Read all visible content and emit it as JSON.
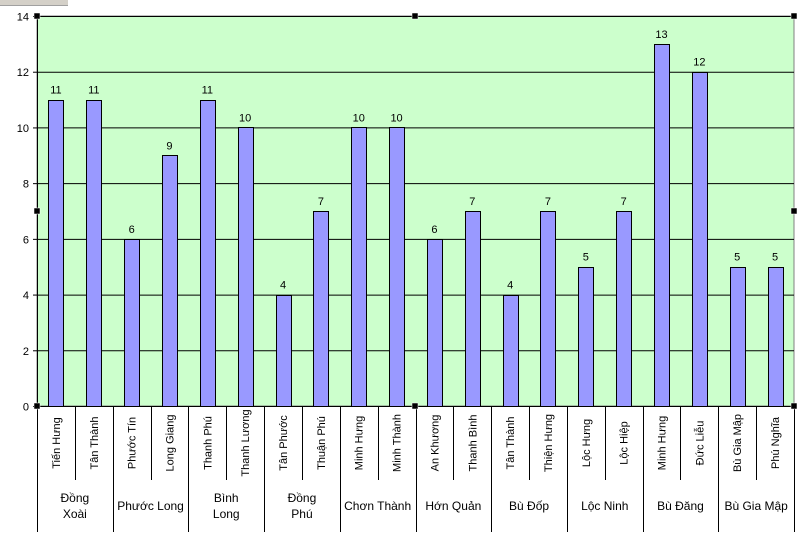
{
  "chart_data": {
    "type": "bar",
    "title": "",
    "xlabel": "",
    "ylabel": "",
    "ylim": [
      0,
      14
    ],
    "yticks": [
      0,
      2,
      4,
      6,
      8,
      10,
      12,
      14
    ],
    "grid": true,
    "legend": "none",
    "colors": {
      "plot_background": "#ccffcc",
      "bar_fill": "#9999ff",
      "bar_stroke": "#000000",
      "gridline": "#000000"
    },
    "categories": [
      "Tiến Hưng",
      "Tân Thành",
      "Phước Tín",
      "Long Giang",
      "Thanh Phú",
      "Thanh Lương",
      "Tân Phước",
      "Thuận Phú",
      "Minh Hưng",
      "Minh Thành",
      "An Khương",
      "Thanh Bình",
      "Tân Thành",
      "Thiện Hưng",
      "Lộc Hưng",
      "Lộc Hiệp",
      "Minh Hưng",
      "Đức Liễu",
      "Bù Gia Mập",
      "Phú Nghĩa"
    ],
    "groups": [
      {
        "label_lines": [
          "Đồng",
          "Xoài"
        ],
        "count": 2
      },
      {
        "label_lines": [
          "Phước Long"
        ],
        "count": 2
      },
      {
        "label_lines": [
          "Bình",
          "Long"
        ],
        "count": 2
      },
      {
        "label_lines": [
          "Đồng",
          "Phú"
        ],
        "count": 2
      },
      {
        "label_lines": [
          "Chơn Thành"
        ],
        "count": 2
      },
      {
        "label_lines": [
          "Hớn Quản"
        ],
        "count": 2
      },
      {
        "label_lines": [
          "Bù Đốp"
        ],
        "count": 2
      },
      {
        "label_lines": [
          "Lộc Ninh"
        ],
        "count": 2
      },
      {
        "label_lines": [
          "Bù Đăng"
        ],
        "count": 2
      },
      {
        "label_lines": [
          "Bù Gia Mập"
        ],
        "count": 2
      }
    ],
    "series": [
      {
        "values": [
          11,
          11,
          6,
          9,
          11,
          10,
          4,
          7,
          10,
          10,
          6,
          7,
          4,
          7,
          5,
          7,
          13,
          12,
          5,
          5
        ]
      }
    ]
  }
}
